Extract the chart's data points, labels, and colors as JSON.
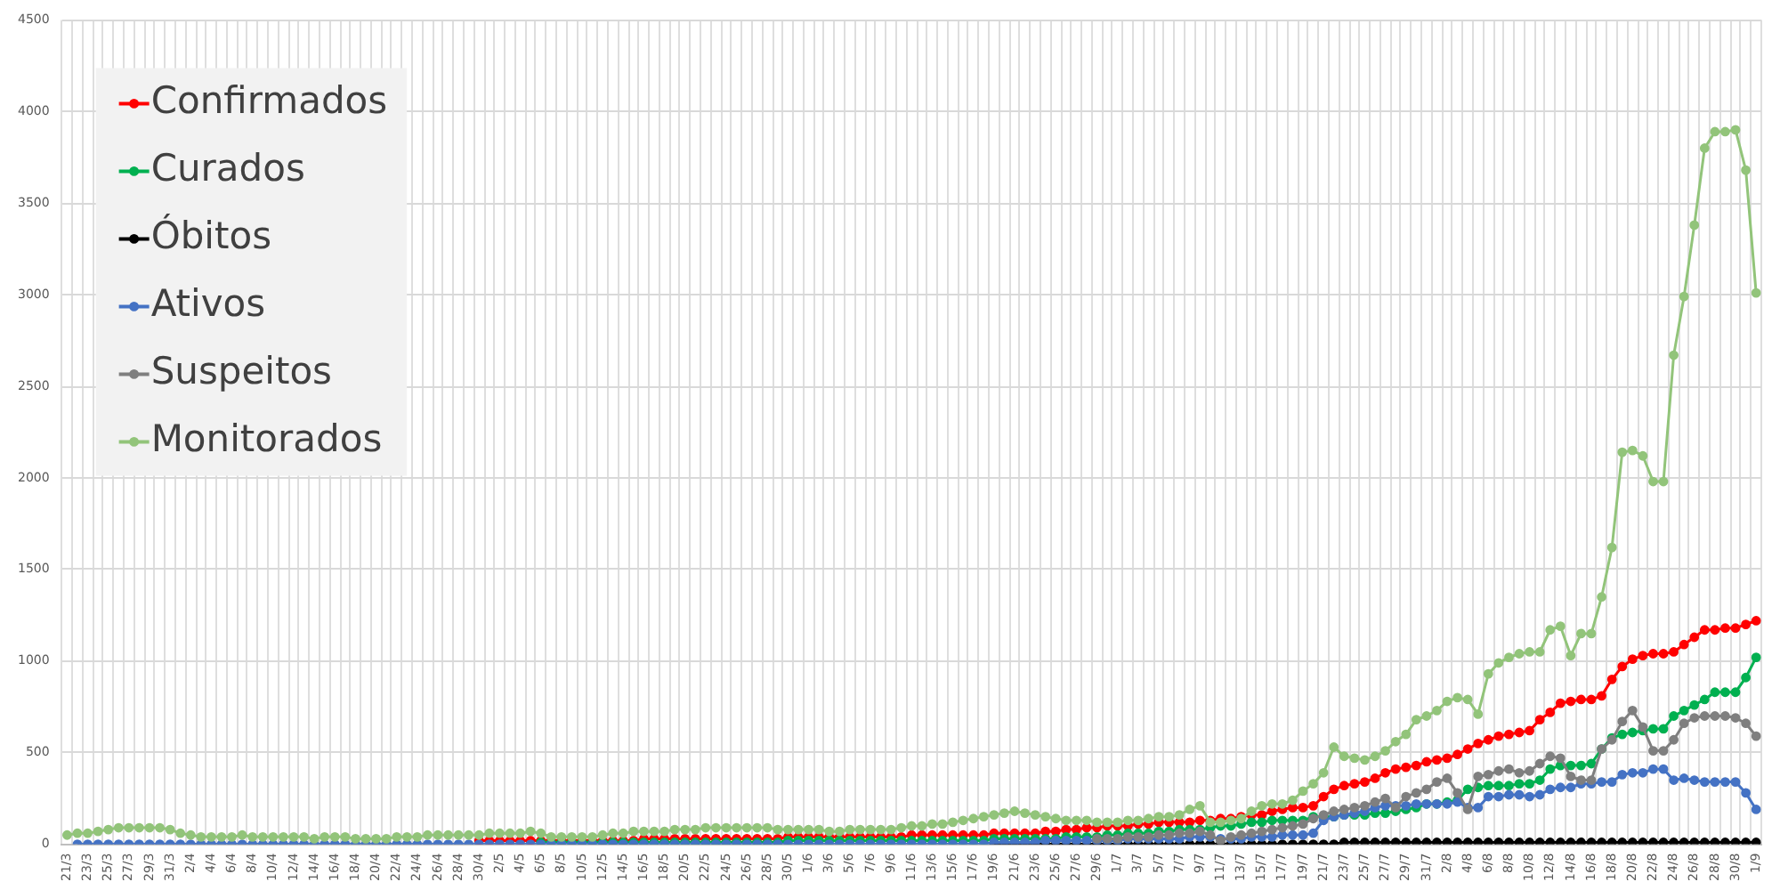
{
  "chart_data": {
    "type": "line",
    "categories": [
      "21/3",
      null,
      "23/3",
      null,
      "25/3",
      null,
      "27/3",
      null,
      "29/3",
      null,
      "31/3",
      null,
      "2/4",
      null,
      "4/4",
      null,
      "6/4",
      null,
      "8/4",
      null,
      "10/4",
      null,
      "12/4",
      null,
      "14/4",
      null,
      "16/4",
      null,
      "18/4",
      null,
      "20/4",
      null,
      "22/4",
      null,
      "24/4",
      null,
      "26/4",
      null,
      "28/4",
      null,
      "30/4",
      null,
      "2/5",
      null,
      "4/5",
      null,
      "6/5",
      null,
      "8/5",
      null,
      "10/5",
      null,
      "12/5",
      null,
      "14/5",
      null,
      "16/5",
      null,
      "18/5",
      null,
      "20/5",
      null,
      "22/5",
      null,
      "24/5",
      null,
      "26/5",
      null,
      "28/5",
      null,
      "30/5",
      null,
      "1/6",
      null,
      "3/6",
      null,
      "5/6",
      null,
      "7/6",
      null,
      "9/6",
      null,
      "11/6",
      null,
      "13/6",
      null,
      "15/6",
      null,
      "17/6",
      null,
      "19/6",
      null,
      "21/6",
      null,
      "23/6",
      null,
      "25/6",
      null,
      "27/6",
      null,
      "29/6",
      null,
      "1/7",
      null,
      "3/7",
      null,
      "5/7",
      null,
      "7/7",
      null,
      "9/7",
      null,
      "11/7",
      null,
      "13/7",
      null,
      "15/7",
      null,
      "17/7",
      null,
      "19/7",
      null,
      "21/7",
      null,
      "23/7",
      null,
      "25/7",
      null,
      "27/7",
      null,
      "29/7",
      null,
      "31/7",
      null,
      "2/8",
      null,
      "4/8",
      null,
      "6/8",
      null,
      "8/8",
      null,
      "10/8",
      null,
      "12/8",
      null,
      "14/8",
      null,
      "16/8",
      null,
      "18/8",
      null,
      "20/8",
      null,
      "22/8",
      null,
      "24/8",
      null,
      "26/8",
      null,
      "28/8",
      null,
      "30/8",
      null,
      "1/9"
    ],
    "series": [
      {
        "name": "Confirmados",
        "color": "#ff0000",
        "values": [
          null,
          null,
          null,
          null,
          null,
          null,
          null,
          null,
          null,
          null,
          null,
          null,
          null,
          null,
          null,
          null,
          null,
          null,
          null,
          null,
          null,
          null,
          null,
          null,
          null,
          null,
          null,
          null,
          null,
          null,
          null,
          null,
          null,
          null,
          null,
          null,
          null,
          null,
          null,
          null,
          20,
          20,
          20,
          20,
          20,
          20,
          20,
          20,
          20,
          20,
          20,
          20,
          20,
          20,
          20,
          20,
          30,
          30,
          30,
          30,
          30,
          30,
          30,
          30,
          30,
          30,
          30,
          30,
          30,
          30,
          40,
          40,
          40,
          40,
          40,
          40,
          40,
          40,
          40,
          40,
          40,
          40,
          50,
          50,
          50,
          50,
          50,
          50,
          50,
          50,
          60,
          60,
          60,
          60,
          60,
          70,
          70,
          80,
          80,
          90,
          90,
          100,
          100,
          100,
          110,
          110,
          120,
          120,
          120,
          120,
          130,
          130,
          140,
          140,
          150,
          160,
          160,
          180,
          190,
          200,
          200,
          210,
          260,
          300,
          320,
          330,
          340,
          360,
          390,
          410,
          420,
          430,
          450,
          460,
          470,
          490,
          520,
          550,
          570,
          590,
          600,
          610,
          620,
          680,
          720,
          770,
          780,
          790,
          790,
          810,
          900,
          970,
          1010,
          1030,
          1040,
          1040,
          1050,
          1090,
          1130,
          1170,
          1170,
          1180,
          1180,
          1200,
          1220
        ]
      },
      {
        "name": "Curados",
        "color": "#00b050",
        "values": [
          null,
          null,
          null,
          null,
          null,
          null,
          null,
          null,
          null,
          null,
          null,
          null,
          null,
          null,
          null,
          null,
          null,
          null,
          null,
          null,
          null,
          null,
          null,
          null,
          null,
          null,
          null,
          null,
          null,
          null,
          null,
          null,
          null,
          null,
          null,
          null,
          null,
          null,
          null,
          null,
          null,
          null,
          null,
          null,
          null,
          null,
          10,
          10,
          10,
          10,
          10,
          10,
          10,
          10,
          10,
          10,
          10,
          10,
          10,
          10,
          10,
          10,
          10,
          10,
          10,
          10,
          10,
          10,
          10,
          10,
          20,
          20,
          20,
          20,
          20,
          20,
          20,
          20,
          20,
          20,
          20,
          20,
          20,
          20,
          20,
          20,
          20,
          20,
          20,
          20,
          30,
          30,
          30,
          30,
          30,
          30,
          30,
          40,
          40,
          40,
          40,
          50,
          50,
          60,
          60,
          60,
          70,
          70,
          80,
          80,
          80,
          90,
          100,
          100,
          110,
          120,
          120,
          130,
          130,
          130,
          130,
          150,
          150,
          150,
          160,
          160,
          160,
          170,
          170,
          180,
          190,
          200,
          220,
          220,
          230,
          240,
          300,
          310,
          320,
          320,
          320,
          330,
          330,
          350,
          410,
          430,
          430,
          430,
          440,
          520,
          580,
          600,
          610,
          620,
          630,
          630,
          700,
          730,
          760,
          790,
          830,
          830,
          830,
          910,
          1020
        ]
      },
      {
        "name": "Óbitos",
        "color": "#000000",
        "values": [
          null,
          null,
          null,
          null,
          null,
          null,
          null,
          null,
          null,
          null,
          null,
          null,
          null,
          null,
          null,
          null,
          null,
          null,
          null,
          null,
          null,
          null,
          null,
          null,
          null,
          null,
          null,
          null,
          null,
          null,
          null,
          null,
          null,
          null,
          null,
          null,
          null,
          null,
          null,
          null,
          null,
          null,
          null,
          null,
          null,
          null,
          null,
          null,
          null,
          null,
          null,
          null,
          null,
          null,
          null,
          null,
          null,
          null,
          null,
          null,
          null,
          null,
          null,
          null,
          null,
          null,
          null,
          null,
          null,
          null,
          null,
          null,
          null,
          null,
          null,
          null,
          null,
          null,
          null,
          null,
          null,
          null,
          null,
          null,
          null,
          null,
          null,
          null,
          null,
          null,
          0,
          0,
          0,
          0,
          0,
          0,
          0,
          0,
          0,
          0,
          0,
          0,
          0,
          0,
          0,
          0,
          0,
          0,
          0,
          0,
          0,
          0,
          0,
          0,
          0,
          0,
          0,
          0,
          0,
          0,
          0,
          0,
          0,
          0,
          10,
          10,
          10,
          10,
          10,
          10,
          10,
          10,
          10,
          10,
          10,
          10,
          10,
          10,
          10,
          10,
          10,
          10,
          10,
          10,
          10,
          10,
          10,
          10,
          10,
          10,
          10,
          10,
          10,
          10,
          10,
          10,
          10,
          10,
          10,
          10,
          10,
          10,
          10,
          10,
          10
        ]
      },
      {
        "name": "Ativos",
        "color": "#4472c4",
        "values": [
          null,
          0,
          0,
          0,
          0,
          0,
          0,
          0,
          0,
          0,
          0,
          0,
          0,
          0,
          0,
          0,
          0,
          0,
          0,
          0,
          0,
          0,
          0,
          0,
          0,
          0,
          0,
          0,
          0,
          0,
          0,
          0,
          0,
          0,
          0,
          0,
          0,
          0,
          0,
          0,
          0,
          0,
          0,
          0,
          0,
          0,
          0,
          0,
          0,
          0,
          0,
          0,
          0,
          0,
          0,
          0,
          0,
          0,
          0,
          0,
          0,
          0,
          0,
          0,
          0,
          0,
          0,
          0,
          0,
          0,
          0,
          0,
          0,
          0,
          0,
          0,
          0,
          0,
          0,
          0,
          0,
          0,
          0,
          0,
          0,
          0,
          0,
          0,
          0,
          0,
          10,
          10,
          10,
          10,
          10,
          20,
          20,
          20,
          20,
          20,
          20,
          20,
          20,
          30,
          30,
          30,
          30,
          30,
          30,
          40,
          40,
          40,
          30,
          30,
          30,
          40,
          40,
          40,
          50,
          50,
          50,
          60,
          130,
          150,
          160,
          170,
          180,
          200,
          210,
          210,
          210,
          220,
          220,
          220,
          220,
          230,
          200,
          200,
          260,
          260,
          270,
          270,
          260,
          270,
          300,
          310,
          310,
          330,
          330,
          340,
          340,
          380,
          390,
          390,
          410,
          410,
          350,
          360,
          350,
          340,
          340,
          340,
          340,
          280,
          190
        ]
      },
      {
        "name": "Suspeitos",
        "color": "#7f7f7f",
        "values": [
          null,
          null,
          null,
          null,
          null,
          null,
          null,
          null,
          null,
          null,
          null,
          null,
          null,
          null,
          null,
          null,
          null,
          null,
          null,
          null,
          null,
          null,
          null,
          null,
          null,
          null,
          null,
          null,
          null,
          null,
          null,
          null,
          null,
          null,
          null,
          null,
          null,
          null,
          null,
          null,
          null,
          null,
          null,
          null,
          null,
          null,
          null,
          null,
          null,
          null,
          null,
          null,
          null,
          null,
          null,
          null,
          null,
          null,
          null,
          null,
          null,
          null,
          null,
          null,
          null,
          null,
          null,
          null,
          null,
          null,
          null,
          null,
          null,
          null,
          null,
          null,
          null,
          null,
          null,
          null,
          null,
          null,
          null,
          null,
          null,
          null,
          null,
          null,
          null,
          null,
          null,
          null,
          null,
          null,
          null,
          null,
          null,
          null,
          null,
          null,
          30,
          30,
          30,
          40,
          40,
          40,
          50,
          50,
          60,
          60,
          70,
          50,
          20,
          40,
          50,
          60,
          70,
          80,
          90,
          100,
          110,
          140,
          160,
          180,
          190,
          200,
          210,
          230,
          250,
          200,
          260,
          280,
          300,
          340,
          360,
          280,
          190,
          370,
          380,
          400,
          410,
          390,
          400,
          440,
          480,
          470,
          370,
          350,
          350,
          520,
          570,
          670,
          730,
          640,
          510,
          510,
          570,
          660,
          690,
          700,
          700,
          700,
          690,
          660,
          590
        ]
      },
      {
        "name": "Monitorados",
        "color": "#92c47a",
        "values": [
          50,
          60,
          60,
          70,
          80,
          90,
          90,
          90,
          90,
          90,
          80,
          60,
          50,
          40,
          40,
          40,
          40,
          50,
          40,
          40,
          40,
          40,
          40,
          40,
          30,
          40,
          40,
          40,
          30,
          30,
          30,
          30,
          40,
          40,
          40,
          50,
          50,
          50,
          50,
          50,
          50,
          60,
          60,
          60,
          60,
          70,
          60,
          40,
          40,
          40,
          40,
          40,
          50,
          60,
          60,
          70,
          70,
          70,
          70,
          80,
          80,
          80,
          90,
          90,
          90,
          90,
          90,
          90,
          90,
          80,
          80,
          80,
          80,
          80,
          70,
          70,
          80,
          80,
          80,
          80,
          80,
          90,
          100,
          100,
          110,
          110,
          120,
          130,
          140,
          150,
          160,
          170,
          180,
          170,
          160,
          150,
          140,
          130,
          130,
          130,
          120,
          120,
          120,
          130,
          130,
          140,
          150,
          150,
          160,
          190,
          210,
          120,
          120,
          130,
          140,
          180,
          210,
          220,
          220,
          240,
          290,
          330,
          390,
          530,
          480,
          470,
          460,
          480,
          510,
          560,
          600,
          680,
          700,
          730,
          780,
          800,
          790,
          710,
          930,
          990,
          1020,
          1040,
          1050,
          1050,
          1170,
          1190,
          1030,
          1150,
          1150,
          1350,
          1620,
          2140,
          2150,
          2120,
          1980,
          1980,
          2670,
          2990,
          3380,
          3800,
          3890,
          3890,
          3900,
          3680,
          3010
        ]
      }
    ],
    "ylim": [
      0,
      4500
    ],
    "yticks": [
      0,
      500,
      1000,
      1500,
      2000,
      2500,
      3000,
      3500,
      4000,
      4500
    ],
    "grid": true,
    "legend": "top left",
    "marker": "circle"
  }
}
